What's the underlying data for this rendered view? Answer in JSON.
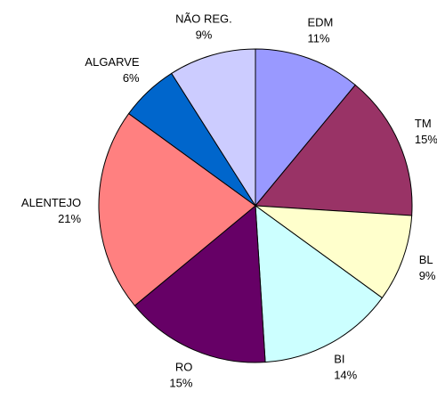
{
  "chart_data": {
    "type": "pie",
    "categories": [
      "EDM",
      "TM",
      "BL",
      "BI",
      "RO",
      "ALENTEJO",
      "ALGARVE",
      "NÃO REG."
    ],
    "values": [
      11,
      15,
      9,
      14,
      15,
      21,
      6,
      9
    ],
    "value_labels": [
      "11%",
      "15%",
      "9%",
      "14%",
      "15%",
      "21%",
      "6%",
      "9%"
    ],
    "colors": [
      "#9999ff",
      "#993366",
      "#ffffcc",
      "#ccffff",
      "#660066",
      "#ff8080",
      "#0066cc",
      "#ccccff"
    ]
  }
}
